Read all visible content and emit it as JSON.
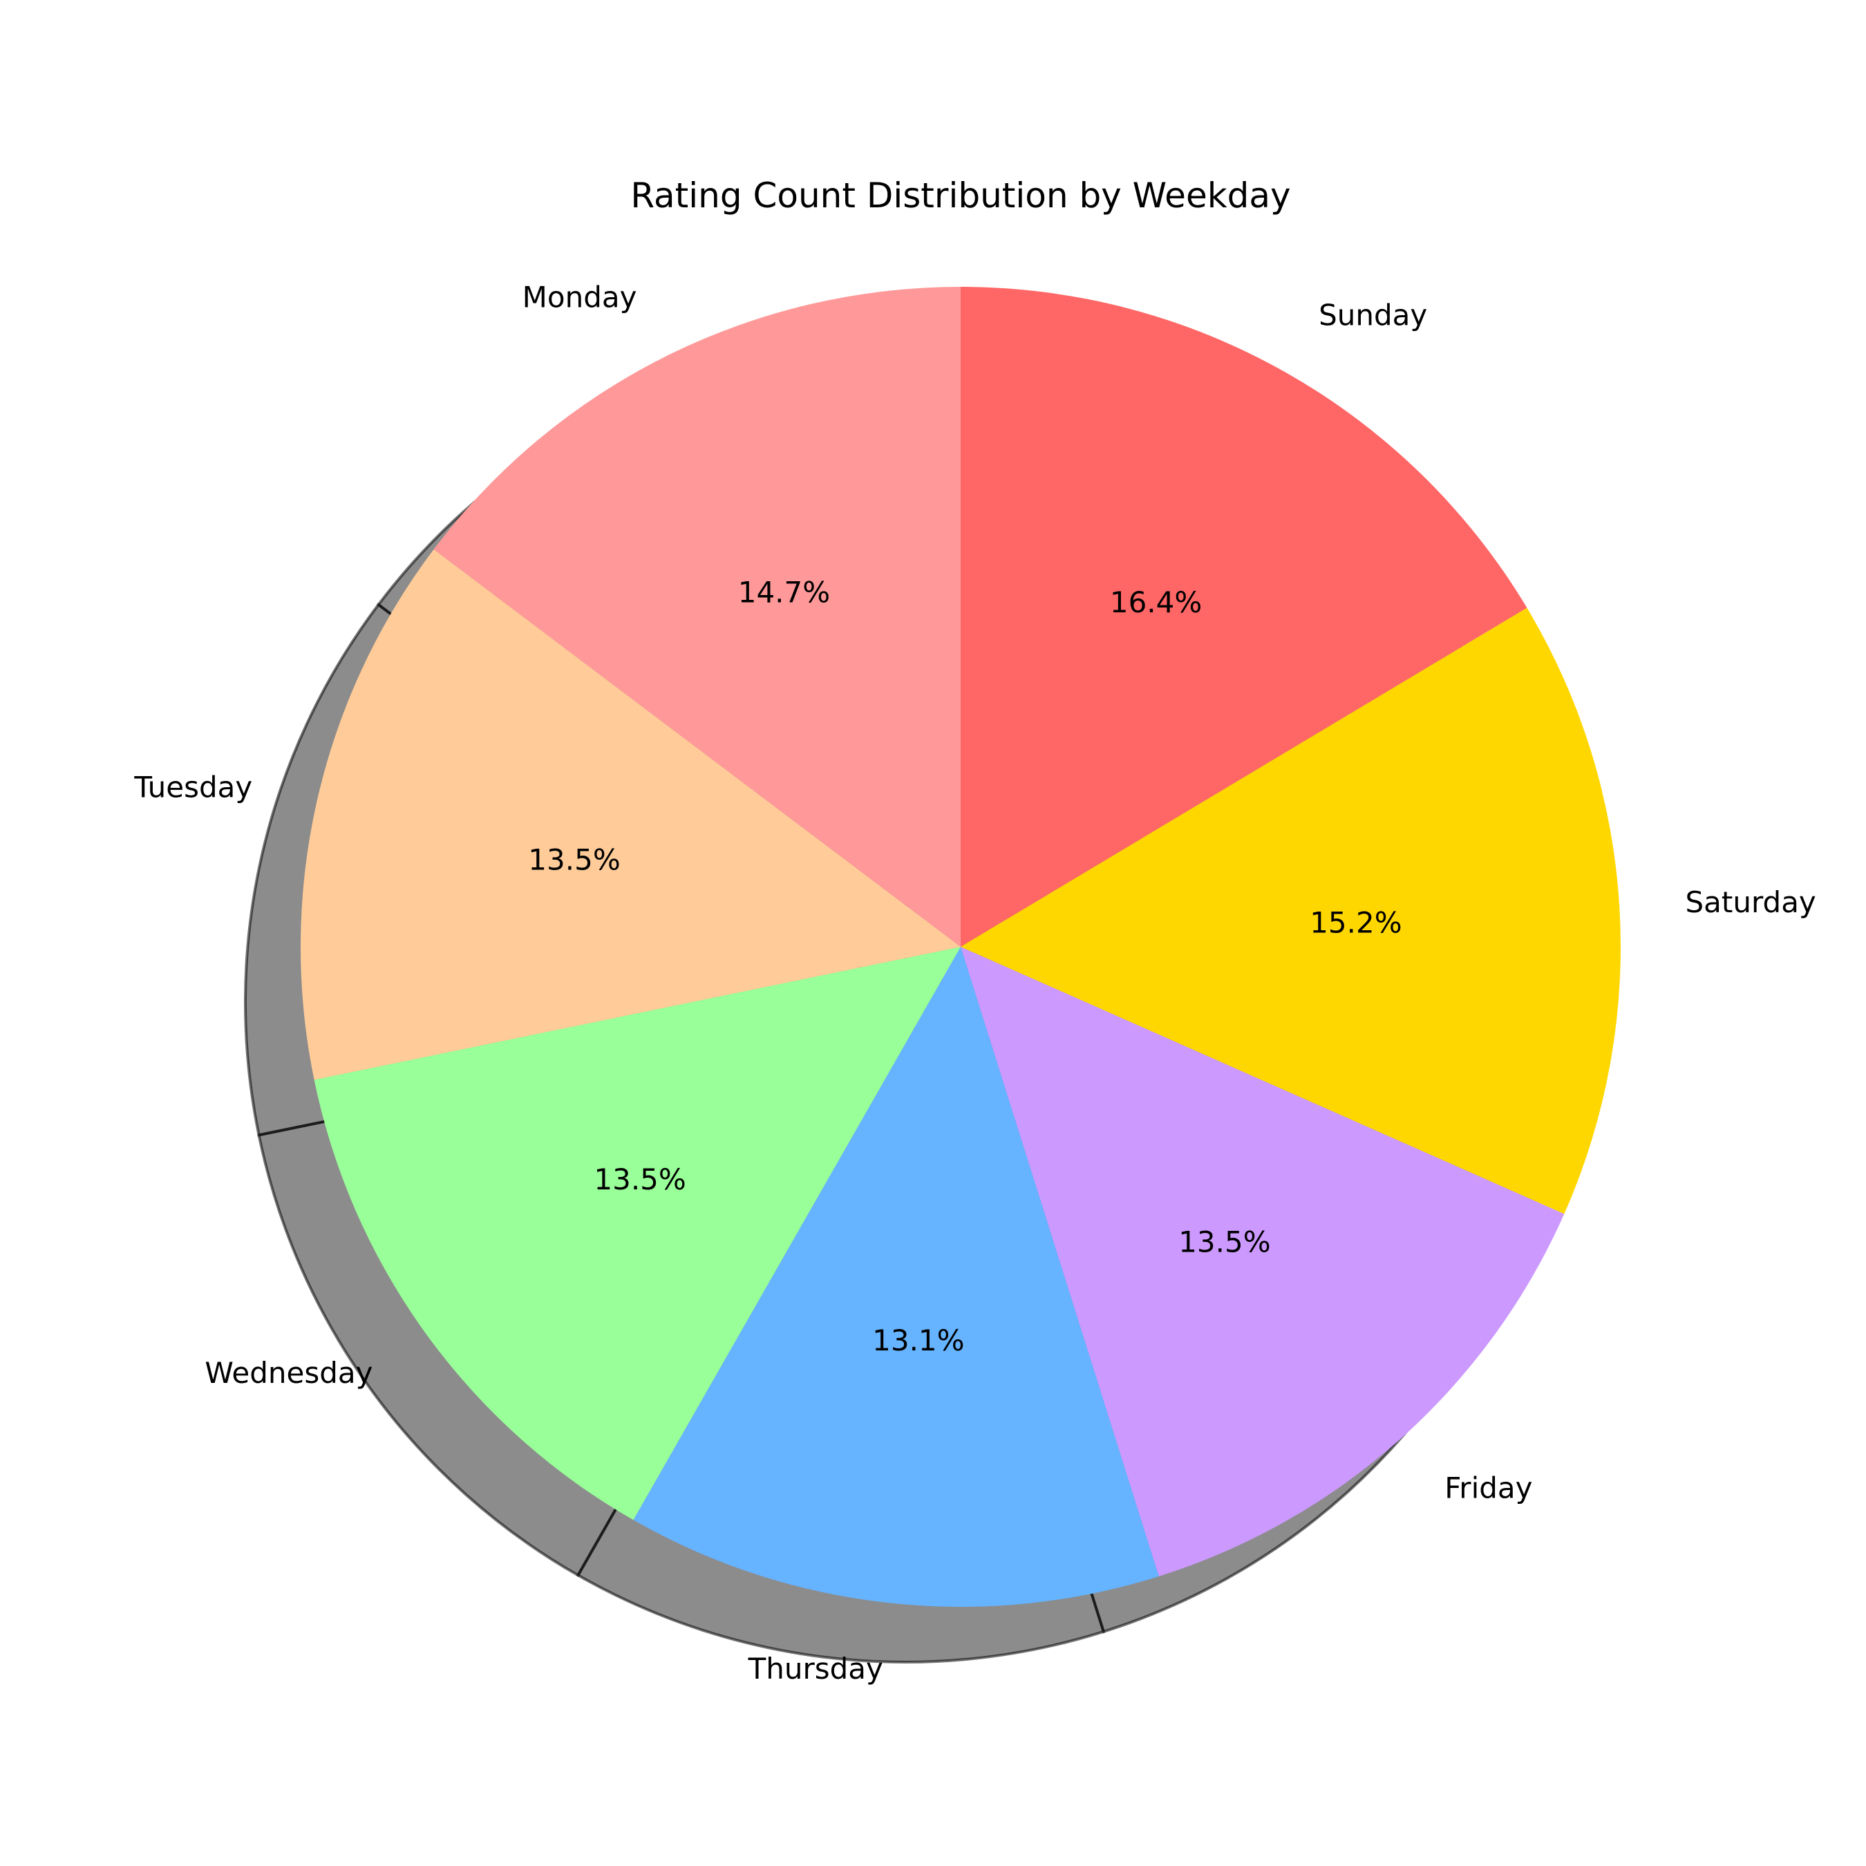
{
  "chart_data": {
    "type": "pie",
    "title": "Rating Count Distribution by Weekday",
    "categories": [
      "Sunday",
      "Saturday",
      "Friday",
      "Thursday",
      "Wednesday",
      "Tuesday",
      "Monday"
    ],
    "values": [
      16.4,
      15.2,
      13.5,
      13.1,
      13.5,
      13.5,
      14.7
    ],
    "value_labels": [
      "16.4%",
      "15.2%",
      "13.5%",
      "13.1%",
      "13.5%",
      "13.5%",
      "14.7%"
    ],
    "colors": [
      "#ff6666",
      "#ffd700",
      "#cc99ff",
      "#66b3ff",
      "#99ff99",
      "#ffcc99",
      "#ff9999"
    ],
    "shadow": true,
    "start_angle_deg": 90,
    "direction": "clockwise"
  }
}
